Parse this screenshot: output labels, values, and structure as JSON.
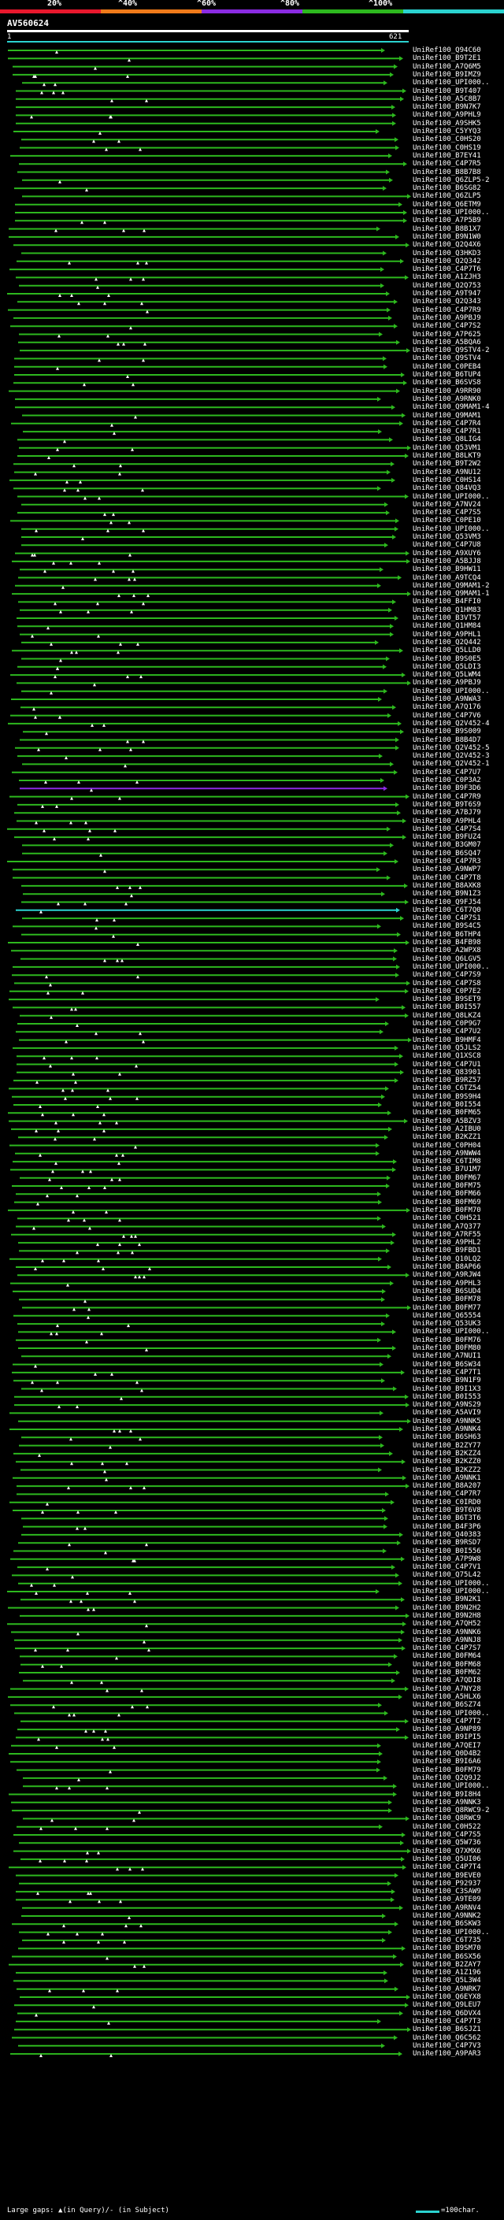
{
  "legend": {
    "labels": [
      "20%",
      "^40%",
      "^60%",
      "^80%",
      "^100%"
    ],
    "colors": [
      "#e8182d",
      "#ef7a1a",
      "#8a2be2",
      "#2db81e",
      "#2bd3d0"
    ]
  },
  "query": {
    "title": "AV560624",
    "start": "1",
    "end": "621"
  },
  "hits": [
    {
      "id": "UniRef100_Q94C60",
      "color": "#2db81e"
    },
    {
      "id": "UniRef100_B9T2E1",
      "color": "#2db81e"
    },
    {
      "id": "UniRef100_A7Q6M5",
      "color": "#2db81e"
    },
    {
      "id": "UniRef100_B9IMZ9",
      "color": "#2db81e"
    },
    {
      "id": "UniRef100_UPI000..",
      "color": "#2db81e"
    },
    {
      "id": "UniRef100_B9T407",
      "color": "#2db81e"
    },
    {
      "id": "UniRef100_A5C8B7",
      "color": "#2db81e"
    },
    {
      "id": "UniRef100_B9N7K7",
      "color": "#2db81e"
    },
    {
      "id": "UniRef100_A9PHL9",
      "color": "#2db81e"
    },
    {
      "id": "UniRef100_A9SHK5",
      "color": "#2db81e"
    },
    {
      "id": "UniRef100_C5YYQ3",
      "color": "#2db81e"
    },
    {
      "id": "UniRef100_C0HS20",
      "color": "#2db81e"
    },
    {
      "id": "UniRef100_C0HS19",
      "color": "#2db81e"
    },
    {
      "id": "UniRef100_B7EY41",
      "color": "#2db81e"
    },
    {
      "id": "UniRef100_C4P7R5",
      "color": "#2db81e"
    },
    {
      "id": "UniRef100_B8B7B8",
      "color": "#2db81e"
    },
    {
      "id": "UniRef100_Q6ZLP5-2",
      "color": "#2db81e"
    },
    {
      "id": "UniRef100_B6SG82",
      "color": "#2db81e"
    },
    {
      "id": "UniRef100_Q6ZLP5",
      "color": "#2db81e"
    },
    {
      "id": "UniRef100_Q6ETM9",
      "color": "#2db81e"
    },
    {
      "id": "UniRef100_UPI000..",
      "color": "#2db81e"
    },
    {
      "id": "UniRef100_A7P5B9",
      "color": "#2db81e"
    },
    {
      "id": "UniRef100_B8B1X7",
      "color": "#2db81e"
    },
    {
      "id": "UniRef100_B9N1W0",
      "color": "#2db81e"
    },
    {
      "id": "UniRef100_Q2Q4X6",
      "color": "#2db81e"
    },
    {
      "id": "UniRef100_Q3HKD3",
      "color": "#2db81e"
    },
    {
      "id": "UniRef100_Q2Q342",
      "color": "#2db81e"
    },
    {
      "id": "UniRef100_C4P7T6",
      "color": "#2db81e"
    },
    {
      "id": "UniRef100_A1ZJH3",
      "color": "#2db81e"
    },
    {
      "id": "UniRef100_Q2Q753",
      "color": "#2db81e"
    },
    {
      "id": "UniRef100_A9T947",
      "color": "#2db81e"
    },
    {
      "id": "UniRef100_Q2Q343",
      "color": "#2db81e"
    },
    {
      "id": "UniRef100_C4P7R9",
      "color": "#2db81e"
    },
    {
      "id": "UniRef100_A9PBJ9",
      "color": "#2db81e"
    },
    {
      "id": "UniRef100_C4P7S2",
      "color": "#2db81e"
    },
    {
      "id": "UniRef100_A7P625",
      "color": "#2db81e"
    },
    {
      "id": "UniRef100_A5BQA6",
      "color": "#2db81e"
    },
    {
      "id": "UniRef100_Q9STV4-2",
      "color": "#2db81e"
    },
    {
      "id": "UniRef100_Q9STV4",
      "color": "#2db81e"
    },
    {
      "id": "UniRef100_C0PEB4",
      "color": "#2db81e"
    },
    {
      "id": "UniRef100_B6TUP4",
      "color": "#2db81e"
    },
    {
      "id": "UniRef100_B6SVS8",
      "color": "#2db81e"
    },
    {
      "id": "UniRef100_A9RR90",
      "color": "#2db81e"
    },
    {
      "id": "UniRef100_A9RNK0",
      "color": "#2db81e"
    },
    {
      "id": "UniRef100_Q9MAM1-4",
      "color": "#2db81e"
    },
    {
      "id": "UniRef100_Q9MAM1",
      "color": "#2db81e"
    },
    {
      "id": "UniRef100_C4P7R4",
      "color": "#2db81e"
    },
    {
      "id": "UniRef100_C4P7R1",
      "color": "#2db81e"
    },
    {
      "id": "UniRef100_Q8LIG4",
      "color": "#2db81e"
    },
    {
      "id": "UniRef100_Q53VM1",
      "color": "#2db81e"
    },
    {
      "id": "UniRef100_B8LKT9",
      "color": "#2db81e"
    },
    {
      "id": "UniRef100_B9T2W2",
      "color": "#2db81e"
    },
    {
      "id": "UniRef100_A9NU12",
      "color": "#2db81e"
    },
    {
      "id": "UniRef100_C0HS14",
      "color": "#2db81e"
    },
    {
      "id": "UniRef100_Q84VQ3",
      "color": "#2db81e"
    },
    {
      "id": "UniRef100_UPI000..",
      "color": "#2db81e"
    },
    {
      "id": "UniRef100_A7NV24",
      "color": "#2db81e"
    },
    {
      "id": "UniRef100_C4P7S5",
      "color": "#2db81e"
    },
    {
      "id": "UniRef100_C0PE10",
      "color": "#2db81e"
    },
    {
      "id": "UniRef100_UPI000..",
      "color": "#2db81e"
    },
    {
      "id": "UniRef100_Q53VM3",
      "color": "#2db81e"
    },
    {
      "id": "UniRef100_C4P7U8",
      "color": "#2db81e"
    },
    {
      "id": "UniRef100_A9XUY6",
      "color": "#2db81e"
    },
    {
      "id": "UniRef100_A5BJJ8",
      "color": "#2db81e"
    },
    {
      "id": "UniRef100_B9HW11",
      "color": "#2db81e"
    },
    {
      "id": "UniRef100_A9TCQ4",
      "color": "#2db81e"
    },
    {
      "id": "UniRef100_Q9MAM1-2",
      "color": "#2db81e"
    },
    {
      "id": "UniRef100_Q9MAM1-1",
      "color": "#2db81e"
    },
    {
      "id": "UniRef100_B4FFI0",
      "color": "#2db81e"
    },
    {
      "id": "UniRef100_Q1HM83",
      "color": "#2db81e"
    },
    {
      "id": "UniRef100_B3VT57",
      "color": "#2db81e"
    },
    {
      "id": "UniRef100_Q1HM84",
      "color": "#2db81e"
    },
    {
      "id": "UniRef100_A9PHL1",
      "color": "#2db81e"
    },
    {
      "id": "UniRef100_Q2Q442",
      "color": "#2db81e"
    },
    {
      "id": "UniRef100_Q5LLD0",
      "color": "#2db81e"
    },
    {
      "id": "UniRef100_B9S0E5",
      "color": "#2db81e"
    },
    {
      "id": "UniRef100_Q5LDI3",
      "color": "#2db81e"
    },
    {
      "id": "UniRef100_Q5LWM4",
      "color": "#2db81e"
    },
    {
      "id": "UniRef100_A9PBJ9",
      "color": "#2db81e"
    },
    {
      "id": "UniRef100_UPI000..",
      "color": "#2db81e"
    },
    {
      "id": "UniRef100_A9NWA3",
      "color": "#2db81e"
    },
    {
      "id": "UniRef100_A7Q176",
      "color": "#2db81e"
    },
    {
      "id": "UniRef100_C4P7V6",
      "color": "#2db81e"
    },
    {
      "id": "UniRef100_Q2V452-4",
      "color": "#2db81e"
    },
    {
      "id": "UniRef100_B9S009",
      "color": "#2db81e"
    },
    {
      "id": "UniRef100_B8B4D7",
      "color": "#2db81e"
    },
    {
      "id": "UniRef100_Q2V452-5",
      "color": "#2db81e"
    },
    {
      "id": "UniRef100_Q2V452-3",
      "color": "#2db81e"
    },
    {
      "id": "UniRef100_Q2V452-1",
      "color": "#2db81e"
    },
    {
      "id": "UniRef100_C4P7U7",
      "color": "#2db81e"
    },
    {
      "id": "UniRef100_C0P3A2",
      "color": "#2db81e"
    },
    {
      "id": "UniRef100_B9F3D6",
      "color": "#8a2be2"
    },
    {
      "id": "UniRef100_C4P7R9",
      "color": "#2db81e"
    },
    {
      "id": "UniRef100_B9T6S9",
      "color": "#2db81e"
    },
    {
      "id": "UniRef100_A7BJ79",
      "color": "#2db81e"
    },
    {
      "id": "UniRef100_A9PHL4",
      "color": "#2db81e"
    },
    {
      "id": "UniRef100_C4P7S4",
      "color": "#2db81e"
    },
    {
      "id": "UniRef100_B9FUZ4",
      "color": "#2db81e"
    },
    {
      "id": "UniRef100_B3GM07",
      "color": "#2db81e"
    },
    {
      "id": "UniRef100_B6SQ47",
      "color": "#2db81e"
    },
    {
      "id": "UniRef100_C4P7R3",
      "color": "#2db81e"
    },
    {
      "id": "UniRef100_A9NWP7",
      "color": "#2db81e"
    },
    {
      "id": "UniRef100_C4P7T8",
      "color": "#2db81e"
    },
    {
      "id": "UniRef100_B8AXK8",
      "color": "#2db81e"
    },
    {
      "id": "UniRef100_B9N1Z3",
      "color": "#2db81e"
    },
    {
      "id": "UniRef100_Q9FJ54",
      "color": "#2db81e"
    },
    {
      "id": "UniRef100_C6T7Q0",
      "color": "#2bd3d0"
    },
    {
      "id": "UniRef100_C4P7S1",
      "color": "#2db81e"
    },
    {
      "id": "UniRef100_B9S4C5",
      "color": "#2db81e"
    },
    {
      "id": "UniRef100_B6THP4",
      "color": "#2db81e"
    },
    {
      "id": "UniRef100_B4FB98",
      "color": "#2db81e"
    },
    {
      "id": "UniRef100_A2WPX8",
      "color": "#2db81e"
    },
    {
      "id": "UniRef100_Q6LGV5",
      "color": "#2db81e"
    },
    {
      "id": "UniRef100_UPI000..",
      "color": "#2db81e"
    },
    {
      "id": "UniRef100_C4P7S9",
      "color": "#2db81e"
    },
    {
      "id": "UniRef100_C4P7S8",
      "color": "#2db81e"
    },
    {
      "id": "UniRef100_C0P7E2",
      "color": "#2db81e"
    },
    {
      "id": "UniRef100_B9SET9",
      "color": "#2db81e"
    },
    {
      "id": "UniRef100_B0I557",
      "color": "#2db81e"
    },
    {
      "id": "UniRef100_Q8LKZ4",
      "color": "#2db81e"
    },
    {
      "id": "UniRef100_C0P9G7",
      "color": "#2db81e"
    },
    {
      "id": "UniRef100_C4P7U2",
      "color": "#2db81e"
    },
    {
      "id": "UniRef100_B9HMF4",
      "color": "#2db81e"
    },
    {
      "id": "UniRef100_Q5JLS2",
      "color": "#2db81e"
    },
    {
      "id": "UniRef100_Q1XSC8",
      "color": "#2db81e"
    },
    {
      "id": "UniRef100_C4P7U1",
      "color": "#2db81e"
    },
    {
      "id": "UniRef100_Q83901",
      "color": "#2db81e"
    },
    {
      "id": "UniRef100_B9RZ57",
      "color": "#2db81e"
    },
    {
      "id": "UniRef100_C6TZ54",
      "color": "#2db81e"
    },
    {
      "id": "UniRef100_B9S9H4",
      "color": "#2db81e"
    },
    {
      "id": "UniRef100_B0I554",
      "color": "#2db81e"
    },
    {
      "id": "UniRef100_B0FM65",
      "color": "#2db81e"
    },
    {
      "id": "UniRef100_A5BZV3",
      "color": "#2db81e"
    },
    {
      "id": "UniRef100_A2IBU0",
      "color": "#2db81e"
    },
    {
      "id": "UniRef100_B2KZZ1",
      "color": "#2db81e"
    },
    {
      "id": "UniRef100_C0PH04",
      "color": "#2db81e"
    },
    {
      "id": "UniRef100_A9NWW4",
      "color": "#2db81e"
    },
    {
      "id": "UniRef100_C6TIM8",
      "color": "#2db81e"
    },
    {
      "id": "UniRef100_B7U1M7",
      "color": "#2db81e"
    },
    {
      "id": "UniRef100_B0FM67",
      "color": "#2db81e"
    },
    {
      "id": "UniRef100_B0FM75",
      "color": "#2db81e"
    },
    {
      "id": "UniRef100_B0FM66",
      "color": "#2db81e"
    },
    {
      "id": "UniRef100_B0FM69",
      "color": "#2db81e"
    },
    {
      "id": "UniRef100_B0FM70",
      "color": "#2db81e"
    },
    {
      "id": "UniRef100_C0H521",
      "color": "#2db81e"
    },
    {
      "id": "UniRef100_A7Q377",
      "color": "#2db81e"
    },
    {
      "id": "UniRef100_A7RF55",
      "color": "#2db81e"
    },
    {
      "id": "UniRef100_A9PHL2",
      "color": "#2db81e"
    },
    {
      "id": "UniRef100_B9FBD1",
      "color": "#2db81e"
    },
    {
      "id": "UniRef100_Q10LQ2",
      "color": "#2db81e"
    },
    {
      "id": "UniRef100_B8AP66",
      "color": "#2db81e"
    },
    {
      "id": "UniRef100_A9RJW4",
      "color": "#2db81e"
    },
    {
      "id": "UniRef100_A9PHL3",
      "color": "#2db81e"
    },
    {
      "id": "UniRef100_B6SUD4",
      "color": "#2db81e"
    },
    {
      "id": "UniRef100_B0FM78",
      "color": "#2db81e"
    },
    {
      "id": "UniRef100_B0FM77",
      "color": "#2db81e"
    },
    {
      "id": "UniRef100_Q65554",
      "color": "#2db81e"
    },
    {
      "id": "UniRef100_Q53UK3",
      "color": "#2db81e"
    },
    {
      "id": "UniRef100_UPI000..",
      "color": "#2db81e"
    },
    {
      "id": "UniRef100_B0FM76",
      "color": "#2db81e"
    },
    {
      "id": "UniRef100_B0FM80",
      "color": "#2db81e"
    },
    {
      "id": "UniRef100_A7NUI1",
      "color": "#2db81e"
    },
    {
      "id": "UniRef100_B6SW34",
      "color": "#2db81e"
    },
    {
      "id": "UniRef100_C4P7T1",
      "color": "#2db81e"
    },
    {
      "id": "UniRef100_B9N1F9",
      "color": "#2db81e"
    },
    {
      "id": "UniRef100_B9I1X3",
      "color": "#2db81e"
    },
    {
      "id": "UniRef100_B0I553",
      "color": "#2db81e"
    },
    {
      "id": "UniRef100_A9NS29",
      "color": "#2db81e"
    },
    {
      "id": "UniRef100_A5AVI9",
      "color": "#2db81e"
    },
    {
      "id": "UniRef100_A9NNK5",
      "color": "#2db81e"
    },
    {
      "id": "UniRef100_A9NNK4",
      "color": "#2db81e"
    },
    {
      "id": "UniRef100_B6SH63",
      "color": "#2db81e"
    },
    {
      "id": "UniRef100_B2ZY77",
      "color": "#2db81e"
    },
    {
      "id": "UniRef100_B2KZZ4",
      "color": "#2db81e"
    },
    {
      "id": "UniRef100_B2KZZ0",
      "color": "#2db81e"
    },
    {
      "id": "UniRef100_B2KZZ2",
      "color": "#2db81e"
    },
    {
      "id": "UniRef100_A9NNK1",
      "color": "#2db81e"
    },
    {
      "id": "UniRef100_B8A207",
      "color": "#2db81e"
    },
    {
      "id": "UniRef100_C4P7R7",
      "color": "#2db81e"
    },
    {
      "id": "UniRef100_C0IRD0",
      "color": "#2db81e"
    },
    {
      "id": "UniRef100_B9T6V8",
      "color": "#2db81e"
    },
    {
      "id": "UniRef100_B6T3T6",
      "color": "#2db81e"
    },
    {
      "id": "UniRef100_B4F3P6",
      "color": "#2db81e"
    },
    {
      "id": "UniRef100_Q40383",
      "color": "#2db81e"
    },
    {
      "id": "UniRef100_B9RSD7",
      "color": "#2db81e"
    },
    {
      "id": "UniRef100_B0I556",
      "color": "#2db81e"
    },
    {
      "id": "UniRef100_A7P9W8",
      "color": "#2db81e"
    },
    {
      "id": "UniRef100_C4P7V1",
      "color": "#2db81e"
    },
    {
      "id": "UniRef100_Q75L42",
      "color": "#2db81e"
    },
    {
      "id": "UniRef100_UPI000..",
      "color": "#2db81e"
    },
    {
      "id": "UniRef100_UPI000..",
      "color": "#2db81e"
    },
    {
      "id": "UniRef100_B9N2K1",
      "color": "#2db81e"
    },
    {
      "id": "UniRef100_B9N2H2",
      "color": "#2db81e"
    },
    {
      "id": "UniRef100_B9N2H8",
      "color": "#2db81e"
    },
    {
      "id": "UniRef100_A7QH52",
      "color": "#2db81e"
    },
    {
      "id": "UniRef100_A9NNK6",
      "color": "#2db81e"
    },
    {
      "id": "UniRef100_A9NNJ8",
      "color": "#2db81e"
    },
    {
      "id": "UniRef100_C4P7S7",
      "color": "#2db81e"
    },
    {
      "id": "UniRef100_B0FM64",
      "color": "#2db81e"
    },
    {
      "id": "UniRef100_B0FM68",
      "color": "#2db81e"
    },
    {
      "id": "UniRef100_B0FM62",
      "color": "#2db81e"
    },
    {
      "id": "UniRef100_A7QDI8",
      "color": "#2db81e"
    },
    {
      "id": "UniRef100_A7NY28",
      "color": "#2db81e"
    },
    {
      "id": "UniRef100_A5HLX6",
      "color": "#2db81e"
    },
    {
      "id": "UniRef100_B6SZ74",
      "color": "#2db81e"
    },
    {
      "id": "UniRef100_UPI000..",
      "color": "#2db81e"
    },
    {
      "id": "UniRef100_C4P7T2",
      "color": "#2db81e"
    },
    {
      "id": "UniRef100_A9NP89",
      "color": "#2db81e"
    },
    {
      "id": "UniRef100_B9IPI5",
      "color": "#2db81e"
    },
    {
      "id": "UniRef100_A7QEI7",
      "color": "#2db81e"
    },
    {
      "id": "UniRef100_Q0D4B2",
      "color": "#2db81e"
    },
    {
      "id": "UniRef100_B9I6A6",
      "color": "#2db81e"
    },
    {
      "id": "UniRef100_B0FM79",
      "color": "#2db81e"
    },
    {
      "id": "UniRef100_Q2Q9J2",
      "color": "#2db81e"
    },
    {
      "id": "UniRef100_UPI000..",
      "color": "#2db81e"
    },
    {
      "id": "UniRef100_B9I8H4",
      "color": "#2db81e"
    },
    {
      "id": "UniRef100_A9NNK3",
      "color": "#2db81e"
    },
    {
      "id": "UniRef100_Q8RWC9-2",
      "color": "#2db81e"
    },
    {
      "id": "UniRef100_Q8RWC9",
      "color": "#2db81e"
    },
    {
      "id": "UniRef100_C0H522",
      "color": "#2db81e"
    },
    {
      "id": "UniRef100_C4P7S5",
      "color": "#2db81e"
    },
    {
      "id": "UniRef100_Q5W736",
      "color": "#2db81e"
    },
    {
      "id": "UniRef100_Q7XMX6",
      "color": "#2db81e"
    },
    {
      "id": "UniRef100_Q5UI06",
      "color": "#2db81e"
    },
    {
      "id": "UniRef100_C4P7T4",
      "color": "#2db81e"
    },
    {
      "id": "UniRef100_B9EVE0",
      "color": "#2db81e"
    },
    {
      "id": "UniRef100_P92937",
      "color": "#2db81e"
    },
    {
      "id": "UniRef100_C3SAW9",
      "color": "#2db81e"
    },
    {
      "id": "UniRef100_A9TE09",
      "color": "#2db81e"
    },
    {
      "id": "UniRef100_A9RNV4",
      "color": "#2db81e"
    },
    {
      "id": "UniRef100_A9NNK2",
      "color": "#2db81e"
    },
    {
      "id": "UniRef100_B6SKW3",
      "color": "#2db81e"
    },
    {
      "id": "UniRef100_UPI000..",
      "color": "#2db81e"
    },
    {
      "id": "UniRef100_C6T735",
      "color": "#2db81e"
    },
    {
      "id": "UniRef100_B9SM70",
      "color": "#2db81e"
    },
    {
      "id": "UniRef100_B6SX56",
      "color": "#2db81e"
    },
    {
      "id": "UniRef100_B2ZAY7",
      "color": "#2db81e"
    },
    {
      "id": "UniRef100_A1Z196",
      "color": "#2db81e"
    },
    {
      "id": "UniRef100_Q5L3W4",
      "color": "#2db81e"
    },
    {
      "id": "UniRef100_A9NRK7",
      "color": "#2db81e"
    },
    {
      "id": "UniRef100_Q6EYX8",
      "color": "#2db81e"
    },
    {
      "id": "UniRef100_Q9LEU7",
      "color": "#2db81e"
    },
    {
      "id": "UniRef100_Q6DVX4",
      "color": "#2db81e"
    },
    {
      "id": "UniRef100_C4P7T3",
      "color": "#2db81e"
    },
    {
      "id": "UniRef100_B6SJZ1",
      "color": "#2db81e"
    },
    {
      "id": "UniRef100_Q6C562",
      "color": "#2db81e"
    },
    {
      "id": "UniRef100_C4P7V3",
      "color": "#2db81e"
    },
    {
      "id": "UniRef100_A9PAR3",
      "color": "#2db81e"
    }
  ],
  "footer": {
    "text": "Large gaps: ▲(in Query)/- (in Subject)",
    "scale_label": "=100char."
  }
}
